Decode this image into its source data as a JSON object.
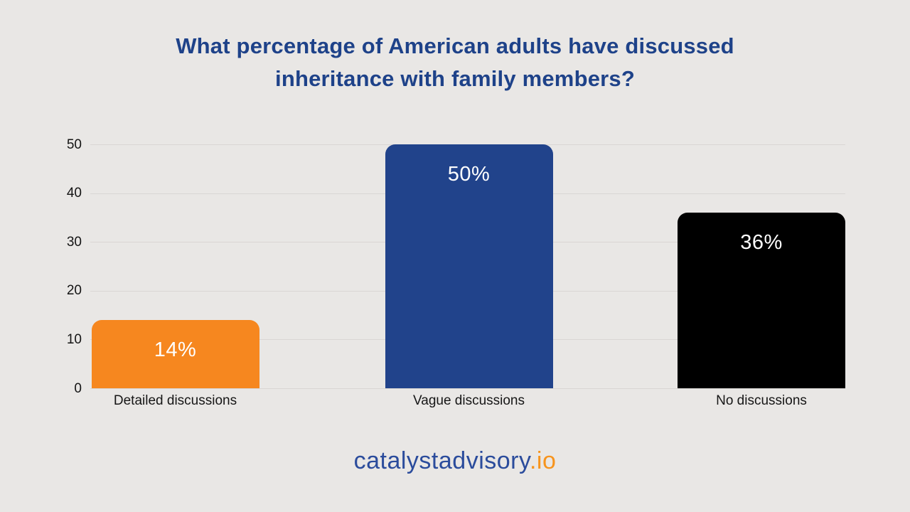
{
  "page": {
    "background_color": "#e9e7e5"
  },
  "title": {
    "full_text": "What percentage of American adults have discussed inheritance with family members?",
    "lines": [
      "What percentage of American adults have discussed",
      "inheritance with family members?"
    ],
    "color": "#1e4289"
  },
  "chart_data": {
    "type": "bar",
    "title": "What percentage of American adults have discussed inheritance with family members?",
    "categories": [
      "Detailed discussions",
      "Vague discussions",
      "No discussions"
    ],
    "values": [
      14,
      50,
      36
    ],
    "value_labels": [
      "14%",
      "50%",
      "36%"
    ],
    "bar_colors": [
      "#f6871f",
      "#21438b",
      "#000000"
    ],
    "value_label_color": "#ffffff",
    "xlabel": "",
    "ylabel": "",
    "ylim": [
      0,
      50
    ],
    "y_ticks": [
      0,
      10,
      20,
      30,
      40,
      50
    ],
    "grid": true,
    "gridline_color": "#d9d6d4",
    "tick_label_color": "#141414",
    "legend": "none"
  },
  "footer": {
    "brand_primary": "catalystadvisory",
    "brand_suffix": ".io",
    "primary_color": "#2b4c9c",
    "suffix_color": "#f7941d"
  }
}
